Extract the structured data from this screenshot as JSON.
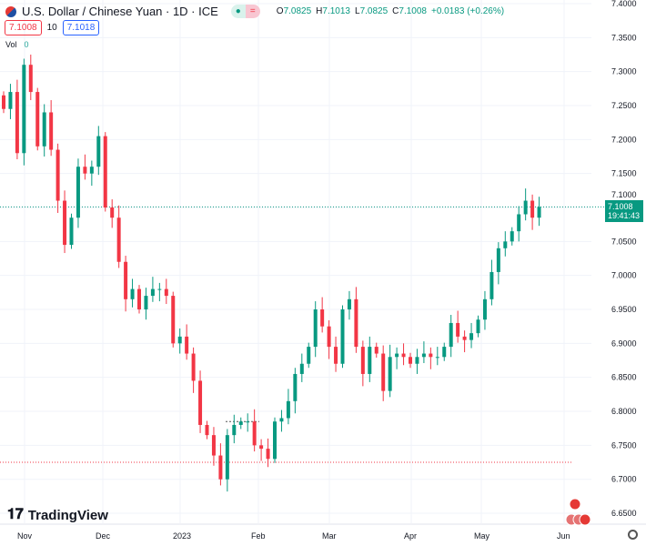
{
  "header": {
    "title": "U.S. Dollar / Chinese Yuan · 1D · ICE",
    "open_label": "O",
    "open": "7.0825",
    "high_label": "H",
    "high": "7.1013",
    "low_label": "L",
    "low": "7.0825",
    "close_label": "C",
    "close": "7.1008",
    "change": "+0.0183 (+0.26%)"
  },
  "trade": {
    "sell": "7.1008",
    "spread": "10",
    "buy": "7.1018"
  },
  "volume": {
    "label": "Vol",
    "value": "0"
  },
  "price_tag": {
    "price": "7.1008",
    "countdown": "19:41:43"
  },
  "price_axis": [
    "7.4000",
    "7.3500",
    "7.3000",
    "7.2500",
    "7.2000",
    "7.1500",
    "7.1000",
    "7.0500",
    "7.0000",
    "6.9500",
    "6.9000",
    "6.8500",
    "6.8000",
    "6.7500",
    "6.7000",
    "6.6500"
  ],
  "time_axis": [
    "Nov",
    "Dec",
    "2023",
    "Feb",
    "Mar",
    "Apr",
    "May",
    "Jun"
  ],
  "brand": "TradingView",
  "colors": {
    "up": "#089981",
    "down": "#f23645"
  },
  "closes": [
    7.245,
    7.27,
    7.18,
    7.31,
    7.27,
    7.19,
    7.24,
    7.185,
    7.11,
    7.045,
    7.085,
    7.16,
    7.15,
    7.16,
    7.205,
    7.1,
    7.085,
    7.02,
    6.965,
    6.98,
    6.95,
    6.97,
    6.98,
    6.98,
    6.97,
    6.9,
    6.91,
    6.885,
    6.845,
    6.78,
    6.765,
    6.735,
    6.7,
    6.765,
    6.78,
    6.785,
    6.785,
    6.75,
    6.745,
    6.73,
    6.785,
    6.79,
    6.815,
    6.855,
    6.87,
    6.895,
    6.95,
    6.925,
    6.895,
    6.87,
    6.95,
    6.965,
    6.895,
    6.855,
    6.895,
    6.885,
    6.83,
    6.88,
    6.885,
    6.88,
    6.87,
    6.88,
    6.885,
    6.88,
    6.88,
    6.895,
    6.93,
    6.91,
    6.905,
    6.915,
    6.935,
    6.965,
    7.005,
    7.04,
    7.05,
    7.065,
    7.09,
    7.11,
    7.085,
    7.1008
  ]
}
